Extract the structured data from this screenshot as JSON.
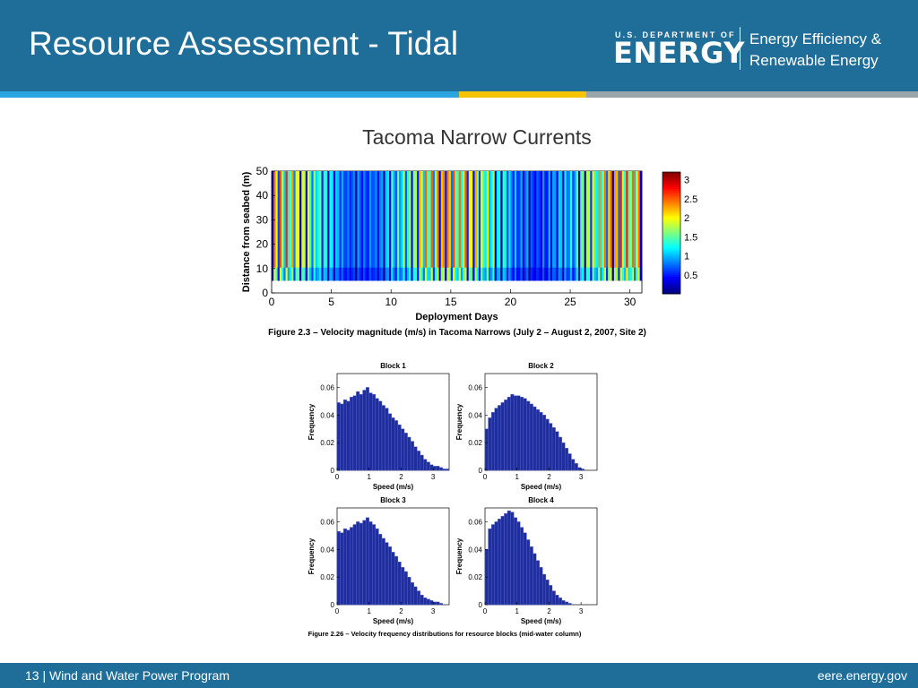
{
  "header": {
    "title": "Resource Assessment - Tidal",
    "doe_small": "U.S. DEPARTMENT OF",
    "doe_big": "ENERGY",
    "eere_line1": "Energy Efficiency &",
    "eere_line2": "Renewable Energy"
  },
  "subtitle": "Tacoma Narrow Currents",
  "footer": {
    "left": "13 | Wind and Water Power Program",
    "right": "eere.energy.gov"
  },
  "colors": {
    "header_bg": "#1f6e99",
    "stripe_blue": "#2aa5df",
    "stripe_yellow": "#f4c400",
    "stripe_gray": "#9aa5ab",
    "bar_fill": "#1f2e9e"
  },
  "chart_data": [
    {
      "type": "heatmap",
      "xlabel": "Deployment Days",
      "ylabel": "Distance from seabed (m)",
      "xlim": [
        0,
        31
      ],
      "ylim": [
        0,
        50
      ],
      "xticks": [
        0,
        5,
        10,
        15,
        20,
        25,
        30
      ],
      "yticks": [
        0,
        10,
        20,
        30,
        40,
        50
      ],
      "data_depth_range": [
        5,
        50
      ],
      "colorbar": {
        "min": 0,
        "max": 3.2,
        "ticks": [
          0.5,
          1,
          1.5,
          2,
          2.5,
          3
        ],
        "colormap": "jet"
      },
      "caption": "Figure 2.3 – Velocity magnitude (m/s) in Tacoma Narrows (July 2 – August 2, 2007, Site 2)"
    },
    {
      "type": "bar",
      "title": "Block 1",
      "xlabel": "Speed (m/s)",
      "ylabel": "Frequency",
      "xlim": [
        0,
        3.5
      ],
      "ylim": [
        0,
        0.07
      ],
      "xticks": [
        0,
        1,
        2,
        3
      ],
      "yticks": [
        0,
        0.02,
        0.04,
        0.06
      ],
      "bin_width": 0.1,
      "values": [
        0.049,
        0.048,
        0.051,
        0.05,
        0.053,
        0.054,
        0.057,
        0.055,
        0.058,
        0.06,
        0.056,
        0.055,
        0.052,
        0.05,
        0.047,
        0.045,
        0.041,
        0.038,
        0.036,
        0.033,
        0.03,
        0.027,
        0.024,
        0.021,
        0.017,
        0.014,
        0.011,
        0.008,
        0.006,
        0.004,
        0.003,
        0.003,
        0.002,
        0.001,
        0.001
      ]
    },
    {
      "type": "bar",
      "title": "Block 2",
      "xlabel": "Speed (m/s)",
      "ylabel": "Frequency",
      "xlim": [
        0,
        3.5
      ],
      "ylim": [
        0,
        0.07
      ],
      "xticks": [
        0,
        1,
        2,
        3
      ],
      "yticks": [
        0,
        0.02,
        0.04,
        0.06
      ],
      "bin_width": 0.1,
      "values": [
        0.03,
        0.038,
        0.042,
        0.045,
        0.047,
        0.049,
        0.051,
        0.053,
        0.055,
        0.054,
        0.054,
        0.053,
        0.052,
        0.05,
        0.048,
        0.046,
        0.044,
        0.042,
        0.04,
        0.037,
        0.034,
        0.031,
        0.028,
        0.024,
        0.02,
        0.016,
        0.012,
        0.008,
        0.005,
        0.002,
        0.001
      ]
    },
    {
      "type": "bar",
      "title": "Block 3",
      "xlabel": "Speed (m/s)",
      "ylabel": "Frequency",
      "xlim": [
        0,
        3.5
      ],
      "ylim": [
        0,
        0.07
      ],
      "xticks": [
        0,
        1,
        2,
        3
      ],
      "yticks": [
        0,
        0.02,
        0.04,
        0.06
      ],
      "bin_width": 0.1,
      "values": [
        0.053,
        0.052,
        0.055,
        0.054,
        0.056,
        0.058,
        0.06,
        0.059,
        0.061,
        0.063,
        0.06,
        0.058,
        0.055,
        0.051,
        0.048,
        0.045,
        0.042,
        0.038,
        0.035,
        0.031,
        0.027,
        0.024,
        0.02,
        0.016,
        0.013,
        0.01,
        0.007,
        0.005,
        0.004,
        0.003,
        0.002,
        0.002,
        0.001
      ]
    },
    {
      "type": "bar",
      "title": "Block 4",
      "xlabel": "Speed (m/s)",
      "ylabel": "Frequency",
      "xlim": [
        0,
        3.5
      ],
      "ylim": [
        0,
        0.07
      ],
      "xticks": [
        0,
        1,
        2,
        3
      ],
      "yticks": [
        0,
        0.02,
        0.04,
        0.06
      ],
      "bin_width": 0.1,
      "values": [
        0.04,
        0.055,
        0.058,
        0.06,
        0.062,
        0.064,
        0.066,
        0.068,
        0.067,
        0.063,
        0.06,
        0.056,
        0.052,
        0.047,
        0.042,
        0.037,
        0.032,
        0.027,
        0.022,
        0.018,
        0.014,
        0.01,
        0.007,
        0.005,
        0.003,
        0.002,
        0.001
      ]
    }
  ],
  "histogram_caption": "Figure 2.26 – Velocity frequency distributions for resource blocks (mid-water column)"
}
